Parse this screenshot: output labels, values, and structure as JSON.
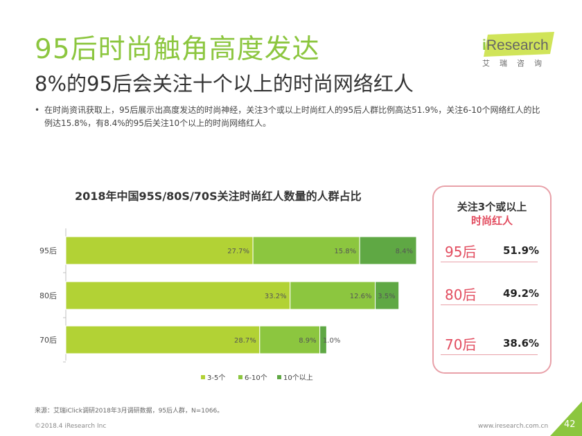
{
  "header": {
    "title": "95后时尚触角高度发达",
    "subtitle": "8%的95后会关注十个以上的时尚网络红人"
  },
  "logo": {
    "i": "i",
    "text": "Research",
    "sub": "艾瑞咨询"
  },
  "bullet": {
    "dot": "•",
    "text": "在时尚资讯获取上，95后展示出高度发达的时尚神经，关注3个或以上时尚红人的95后人群比例高达51.9%，关注6-10个网络红人的比例达15.8%，有8.4%的95后关注10个以上的时尚网络红人。"
  },
  "colors": {
    "accent": "#8cc63f",
    "pink": "#e24b5e",
    "border_pink": "#e8a0a8"
  },
  "chart_data": {
    "type": "bar",
    "orientation": "horizontal",
    "stacked": true,
    "title": "2018年中国95S/80S/70S关注时尚红人数量的人群占比",
    "categories": [
      "95后",
      "80后",
      "70后"
    ],
    "series": [
      {
        "name": "3-5个",
        "values": [
          27.7,
          33.2,
          28.7
        ],
        "labels": [
          "27.7%",
          "33.2%",
          "28.7%"
        ],
        "color": "#b2d235"
      },
      {
        "name": "6-10个",
        "values": [
          15.8,
          12.6,
          8.9
        ],
        "labels": [
          "15.8%",
          "12.6%",
          "8.9%"
        ],
        "color": "#8cc63f"
      },
      {
        "name": "10个以上",
        "values": [
          8.4,
          3.5,
          1.0
        ],
        "labels": [
          "8.4%",
          "3.5%",
          "1.0%"
        ],
        "color": "#5fa844"
      }
    ],
    "xlim": [
      0,
      60
    ],
    "legend_position": "bottom",
    "grid": false
  },
  "callout": {
    "heading1": "关注3个或以上",
    "heading2": "时尚红人",
    "rows": [
      {
        "gen": "95后",
        "pct": "51.9%"
      },
      {
        "gen": "80后",
        "pct": "49.2%"
      },
      {
        "gen": "70后",
        "pct": "38.6%"
      }
    ]
  },
  "footer": {
    "source": "来源：艾瑞iClick调研2018年3月调研数据，95后人群，N=1066。",
    "copyright": "©2018.4 iResearch Inc",
    "website": "www.iresearch.com.cn",
    "page": "42"
  }
}
